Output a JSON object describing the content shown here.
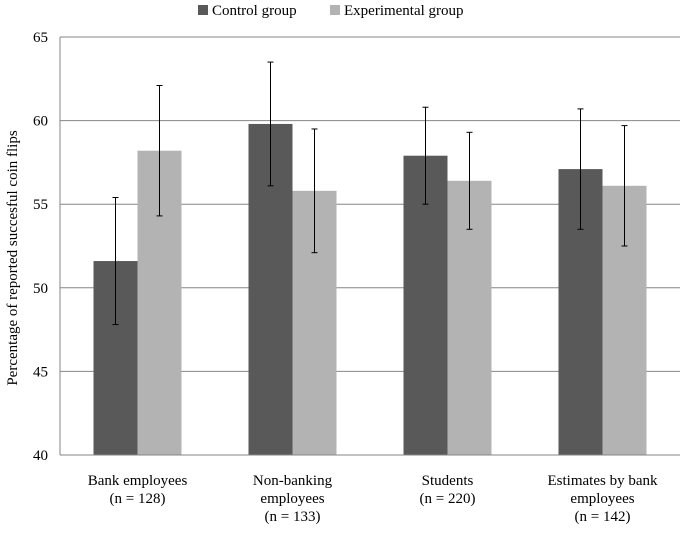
{
  "chart_data": {
    "type": "bar",
    "title": "",
    "xlabel": "",
    "ylabel": "Percentage of reported succesful coin flips",
    "ylim": [
      40,
      65
    ],
    "yticks": [
      40,
      45,
      50,
      55,
      60,
      65
    ],
    "grid": true,
    "legend_position": "top",
    "categories": [
      [
        "Bank employees",
        "(n = 128)"
      ],
      [
        "Non-banking",
        "employees",
        "(n = 133)"
      ],
      [
        "Students",
        "(n = 220)"
      ],
      [
        "Estimates by bank",
        "employees",
        "(n = 142)"
      ]
    ],
    "series": [
      {
        "name": "Control group",
        "color": "#595959",
        "values": [
          51.6,
          59.8,
          57.9,
          57.1
        ],
        "error_low": [
          47.8,
          56.1,
          55.0,
          53.5
        ],
        "error_high": [
          55.4,
          63.5,
          60.8,
          60.7
        ]
      },
      {
        "name": "Experimental group",
        "color": "#b3b3b3",
        "values": [
          58.2,
          55.8,
          56.4,
          56.1
        ],
        "error_low": [
          54.3,
          52.1,
          53.5,
          52.5
        ],
        "error_high": [
          62.1,
          59.5,
          59.3,
          59.7
        ]
      }
    ]
  }
}
